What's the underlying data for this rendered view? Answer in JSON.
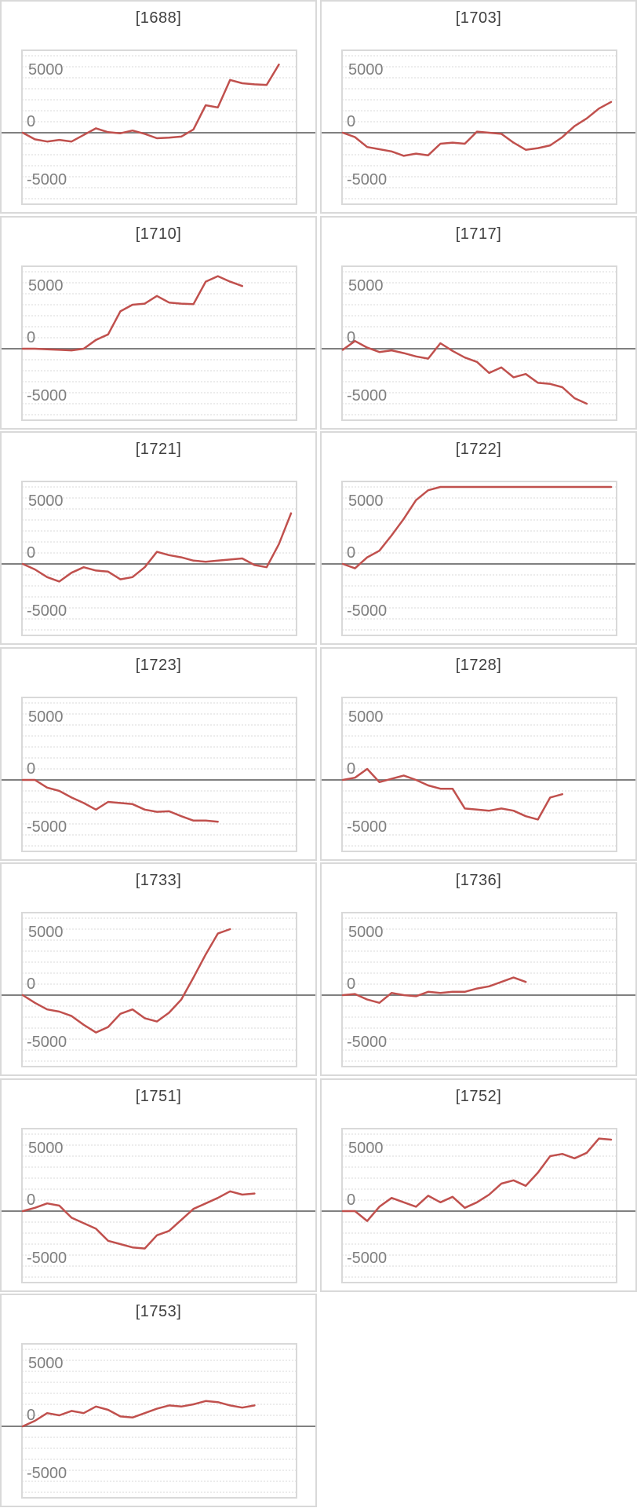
{
  "colors": {
    "line": "#c0504d",
    "zero_axis": "#808080",
    "grid": "#d9d9d9",
    "frame": "#d9d9d9",
    "tick_text": "#7f7f7f",
    "title_text": "#404040"
  },
  "chart_data": [
    {
      "type": "line",
      "title": "[1688]",
      "ylim": [
        -6500,
        7500
      ],
      "yticks": [
        5000,
        0,
        -5000
      ],
      "grid": true,
      "values": [
        0,
        -600,
        -800,
        -650,
        -800,
        -200,
        400,
        50,
        -50,
        200,
        -100,
        -500,
        -450,
        -350,
        300,
        2500,
        2300,
        4800,
        4500,
        4400,
        4350,
        6200
      ]
    },
    {
      "type": "line",
      "title": "[1703]",
      "ylim": [
        -6500,
        7500
      ],
      "yticks": [
        5000,
        0,
        -5000
      ],
      "grid": true,
      "values": [
        0,
        -400,
        -1300,
        -1500,
        -1700,
        -2100,
        -1900,
        -2050,
        -1000,
        -900,
        -1000,
        100,
        0,
        -100,
        -900,
        -1550,
        -1400,
        -1150,
        -400,
        600,
        1300,
        2200,
        2800
      ]
    },
    {
      "type": "line",
      "title": "[1710]",
      "ylim": [
        -6500,
        7500
      ],
      "yticks": [
        5000,
        0,
        -5000
      ],
      "grid": true,
      "values": [
        0,
        0,
        -50,
        -100,
        -150,
        0,
        800,
        1300,
        3400,
        4000,
        4100,
        4800,
        4200,
        4100,
        4050,
        6100,
        6600,
        6100,
        5700
      ]
    },
    {
      "type": "line",
      "title": "[1717]",
      "ylim": [
        -6500,
        7500
      ],
      "yticks": [
        5000,
        0,
        -5000
      ],
      "grid": true,
      "values": [
        -100,
        700,
        100,
        -300,
        -150,
        -400,
        -700,
        -900,
        500,
        -200,
        -800,
        -1200,
        -2200,
        -1700,
        -2600,
        -2300,
        -3100,
        -3200,
        -3500,
        -4500,
        -5000
      ]
    },
    {
      "type": "line",
      "title": "[1721]",
      "ylim": [
        -6500,
        7500
      ],
      "yticks": [
        5000,
        0,
        -5000
      ],
      "grid": true,
      "values": [
        0,
        -500,
        -1200,
        -1600,
        -800,
        -300,
        -600,
        -700,
        -1400,
        -1200,
        -300,
        1100,
        800,
        600,
        300,
        200,
        300,
        400,
        500,
        -100,
        -300,
        1800,
        4600
      ]
    },
    {
      "type": "line",
      "title": "[1722]",
      "ylim": [
        -6500,
        7500
      ],
      "yticks": [
        5000,
        0,
        -5000
      ],
      "grid": true,
      "values": [
        0,
        -400,
        600,
        1200,
        2600,
        4100,
        5800,
        6700,
        7000,
        7000,
        7000,
        7000,
        7000,
        7000,
        7000,
        7000,
        7000,
        7000,
        7000,
        7000,
        7000,
        7000,
        7000
      ]
    },
    {
      "type": "line",
      "title": "[1723]",
      "ylim": [
        -6500,
        7500
      ],
      "yticks": [
        5000,
        0,
        -5000
      ],
      "grid": true,
      "values": [
        0,
        0,
        -700,
        -1000,
        -1600,
        -2100,
        -2700,
        -2000,
        -2100,
        -2200,
        -2700,
        -2900,
        -2850,
        -3300,
        -3700,
        -3700,
        -3800
      ]
    },
    {
      "type": "line",
      "title": "[1728]",
      "ylim": [
        -6500,
        7500
      ],
      "yticks": [
        5000,
        0,
        -5000
      ],
      "grid": true,
      "values": [
        0,
        200,
        1000,
        -200,
        100,
        400,
        0,
        -500,
        -800,
        -800,
        -2600,
        -2700,
        -2800,
        -2600,
        -2800,
        -3300,
        -3600,
        -1600,
        -1300
      ]
    },
    {
      "type": "line",
      "title": "[1733]",
      "ylim": [
        -6500,
        7500
      ],
      "yticks": [
        5000,
        0,
        -5000
      ],
      "grid": true,
      "values": [
        0,
        -700,
        -1300,
        -1500,
        -1900,
        -2700,
        -3400,
        -2900,
        -1700,
        -1300,
        -2100,
        -2400,
        -1600,
        -400,
        1600,
        3700,
        5600,
        6000
      ]
    },
    {
      "type": "line",
      "title": "[1736]",
      "ylim": [
        -6500,
        7500
      ],
      "yticks": [
        5000,
        0,
        -5000
      ],
      "grid": true,
      "values": [
        0,
        100,
        -400,
        -700,
        200,
        0,
        -100,
        300,
        200,
        300,
        300,
        600,
        800,
        1200,
        1600,
        1200
      ]
    },
    {
      "type": "line",
      "title": "[1751]",
      "ylim": [
        -6500,
        7500
      ],
      "yticks": [
        5000,
        0,
        -5000
      ],
      "grid": true,
      "values": [
        0,
        300,
        700,
        500,
        -600,
        -1100,
        -1600,
        -2700,
        -3000,
        -3300,
        -3400,
        -2200,
        -1800,
        -800,
        200,
        700,
        1200,
        1800,
        1500,
        1600
      ]
    },
    {
      "type": "line",
      "title": "[1752]",
      "ylim": [
        -6500,
        7500
      ],
      "yticks": [
        5000,
        0,
        -5000
      ],
      "grid": true,
      "values": [
        0,
        0,
        -900,
        400,
        1200,
        800,
        400,
        1400,
        800,
        1300,
        300,
        800,
        1500,
        2500,
        2800,
        2300,
        3500,
        5000,
        5200,
        4800,
        5300,
        6600,
        6500
      ]
    },
    {
      "type": "line",
      "title": "[1753]",
      "ylim": [
        -6500,
        7500
      ],
      "yticks": [
        5000,
        0,
        -5000
      ],
      "grid": true,
      "values": [
        0,
        500,
        1200,
        1000,
        1400,
        1200,
        1800,
        1500,
        900,
        800,
        1200,
        1600,
        1900,
        1800,
        2000,
        2300,
        2200,
        1900,
        1700,
        1900
      ]
    }
  ]
}
